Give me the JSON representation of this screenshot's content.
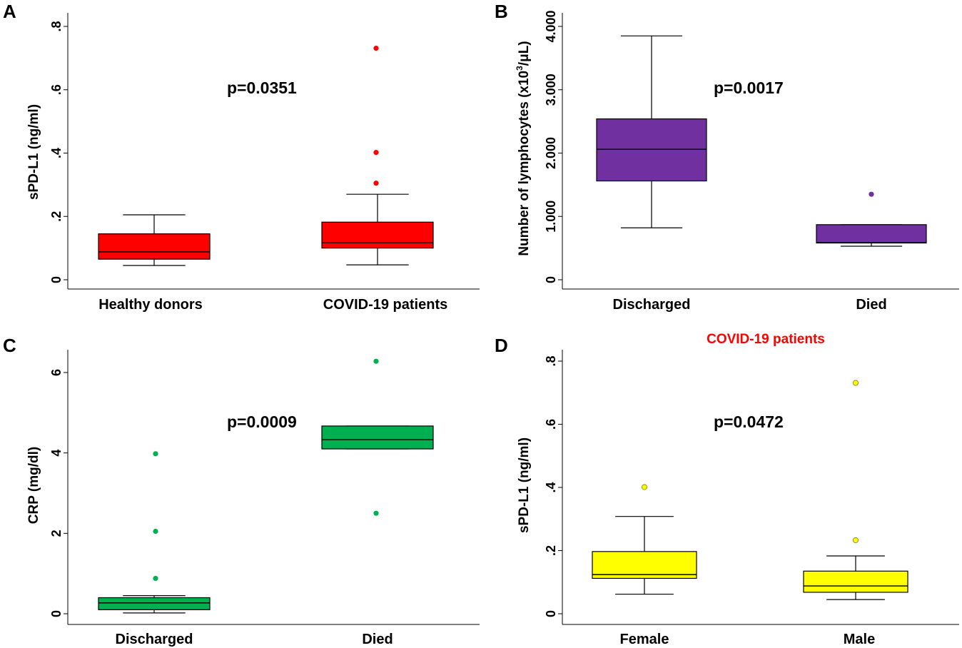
{
  "chart_data": [
    {
      "panel": "A",
      "type": "box",
      "ylabel": "sPD-L1 (ng/ml)",
      "ylim": [
        0,
        0.8
      ],
      "ticks": [
        0,
        0.2,
        0.4,
        0.6,
        0.8
      ],
      "tick_labels": [
        "0",
        ".2",
        ".4",
        ".6",
        ".8"
      ],
      "p_value": "p=0.0351",
      "color": "#ff0000",
      "groups": [
        {
          "label": "Healthy donors",
          "min": 0.045,
          "q1": 0.065,
          "median": 0.088,
          "q3": 0.145,
          "max": 0.205,
          "outliers": []
        },
        {
          "label": "COVID-19 patients",
          "min": 0.047,
          "q1": 0.1,
          "median": 0.117,
          "q3": 0.182,
          "max": 0.27,
          "outliers": [
            0.305,
            0.402,
            0.731
          ]
        }
      ]
    },
    {
      "panel": "B",
      "type": "box",
      "ylabel_pre": "Number of lymphocytes (x10",
      "ylabel_sup": "3",
      "ylabel_post": "/μL)",
      "ylim": [
        0,
        4000
      ],
      "ticks": [
        0,
        1000,
        2000,
        3000,
        4000
      ],
      "tick_labels": [
        "0",
        "1.000",
        "2.000",
        "3.000",
        "4.000"
      ],
      "p_value": "p=0.0017",
      "color": "#7030a0",
      "groups": [
        {
          "label": "Discharged",
          "min": 820,
          "q1": 1560,
          "median": 2060,
          "q3": 2540,
          "max": 3850,
          "outliers": []
        },
        {
          "label": "Died",
          "min": 530,
          "q1": 580,
          "median": 590,
          "q3": 870,
          "max": 870,
          "outliers": [
            1350
          ]
        }
      ]
    },
    {
      "panel": "C",
      "type": "box",
      "ylabel": "CRP (mg/dl)",
      "ylim": [
        0,
        6.5
      ],
      "ticks": [
        0,
        2,
        4,
        6
      ],
      "tick_labels": [
        "0",
        "2",
        "4",
        "6"
      ],
      "p_value": "p=0.0009",
      "color": "#00b050",
      "groups": [
        {
          "label": "Discharged",
          "min": 0.02,
          "q1": 0.1,
          "median": 0.27,
          "q3": 0.4,
          "max": 0.45,
          "outliers": [
            0.88,
            2.05,
            3.98
          ]
        },
        {
          "label": "Died",
          "min": 4.1,
          "q1": 4.1,
          "median": 4.33,
          "q3": 4.67,
          "max": 4.67,
          "outliers": [
            2.5,
            6.28
          ]
        }
      ]
    },
    {
      "panel": "D",
      "type": "box",
      "title": "COVID-19 patients",
      "title_color": "#ff0000",
      "ylabel": "sPD-L1 (ng/ml)",
      "ylim": [
        0,
        0.8
      ],
      "ticks": [
        0,
        0.2,
        0.4,
        0.6,
        0.8
      ],
      "tick_labels": [
        "0",
        ".2",
        ".4",
        ".6",
        ".8"
      ],
      "p_value": "p=0.0472",
      "color": "#ffff00",
      "groups": [
        {
          "label": "Female",
          "min": 0.062,
          "q1": 0.112,
          "median": 0.124,
          "q3": 0.197,
          "max": 0.308,
          "outliers": [
            0.401
          ]
        },
        {
          "label": "Male",
          "min": 0.045,
          "q1": 0.068,
          "median": 0.088,
          "q3": 0.135,
          "max": 0.183,
          "outliers": [
            0.233,
            0.731
          ]
        }
      ]
    }
  ]
}
